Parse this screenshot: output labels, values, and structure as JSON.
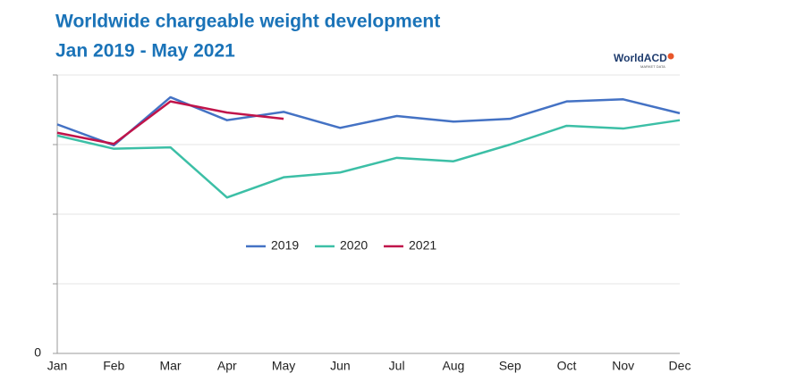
{
  "chart_data": {
    "type": "line",
    "title": "Worldwide chargeable weight development",
    "subtitle": "Jan 2019 - May 2021",
    "logo": "WorldACD",
    "logo_subtitle": "MARKET DATA",
    "categories": [
      "Jan",
      "Feb",
      "Mar",
      "Apr",
      "May",
      "Jun",
      "Jul",
      "Aug",
      "Sep",
      "Oct",
      "Nov",
      "Dec"
    ],
    "series": [
      {
        "name": "2019",
        "color": "#4472c4",
        "values": [
          3.29,
          2.99,
          3.68,
          3.35,
          3.47,
          3.24,
          3.41,
          3.33,
          3.37,
          3.62,
          3.65,
          3.45
        ]
      },
      {
        "name": "2020",
        "color": "#3cbfa6",
        "values": [
          3.13,
          2.94,
          2.96,
          2.24,
          2.53,
          2.6,
          2.81,
          2.76,
          3.0,
          3.27,
          3.23,
          3.35
        ]
      },
      {
        "name": "2021",
        "color": "#c0144a",
        "values": [
          3.17,
          3.01,
          3.62,
          3.46,
          3.37,
          null,
          null,
          null,
          null,
          null,
          null,
          null
        ]
      }
    ],
    "ylim": [
      0,
      4
    ],
    "yticks": [
      0,
      1,
      2,
      3,
      4
    ],
    "yticklabels": [
      "0",
      null,
      null,
      null,
      null
    ],
    "grid": true
  }
}
